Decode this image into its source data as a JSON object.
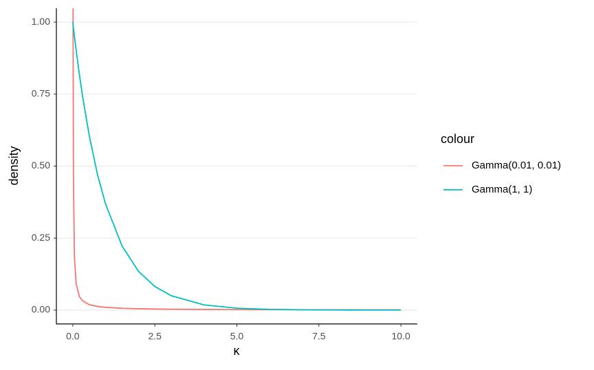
{
  "chart_data": {
    "type": "line",
    "x_label": "κ",
    "y_label": "density",
    "legend_title": "colour",
    "x": [
      0,
      0.005,
      0.01,
      0.02,
      0.05,
      0.1,
      0.2,
      0.3,
      0.5,
      0.75,
      1,
      1.5,
      2,
      2.5,
      3,
      4,
      5,
      6,
      7,
      8,
      9,
      10
    ],
    "series": [
      {
        "name": "Gamma(0.01, 0.01)",
        "color": "#f8766d",
        "values": [
          null,
          1.82,
          0.917,
          0.461,
          0.186,
          0.094,
          0.047,
          0.032,
          0.019,
          0.0127,
          0.0095,
          0.0063,
          0.0047,
          0.0038,
          0.0031,
          0.0023,
          0.0018,
          0.0015,
          0.0013,
          0.0011,
          0.001,
          0.00088
        ]
      },
      {
        "name": "Gamma(1, 1)",
        "color": "#00bfc4",
        "values": [
          1,
          0.995,
          0.99,
          0.98,
          0.951,
          0.905,
          0.819,
          0.741,
          0.607,
          0.472,
          0.368,
          0.223,
          0.135,
          0.082,
          0.05,
          0.018,
          0.0067,
          0.0025,
          0.0009,
          0.0003,
          0.0001,
          5e-05
        ]
      }
    ],
    "xlim": [
      -0.5,
      10.5
    ],
    "ylim": [
      -0.048,
      1.048
    ],
    "xticks": [
      {
        "value": 0,
        "label": "0.0"
      },
      2.5,
      {
        "value": 5,
        "label": "5.0"
      },
      7.5,
      {
        "value": 10,
        "label": "10.0"
      }
    ],
    "yticks": [
      {
        "value": 0,
        "label": "0.00"
      },
      {
        "value": 0.25,
        "label": "0.25"
      },
      {
        "value": 0.5,
        "label": "0.50"
      },
      {
        "value": 0.75,
        "label": "0.75"
      },
      {
        "value": 1,
        "label": "1.00"
      }
    ],
    "grid": true
  }
}
